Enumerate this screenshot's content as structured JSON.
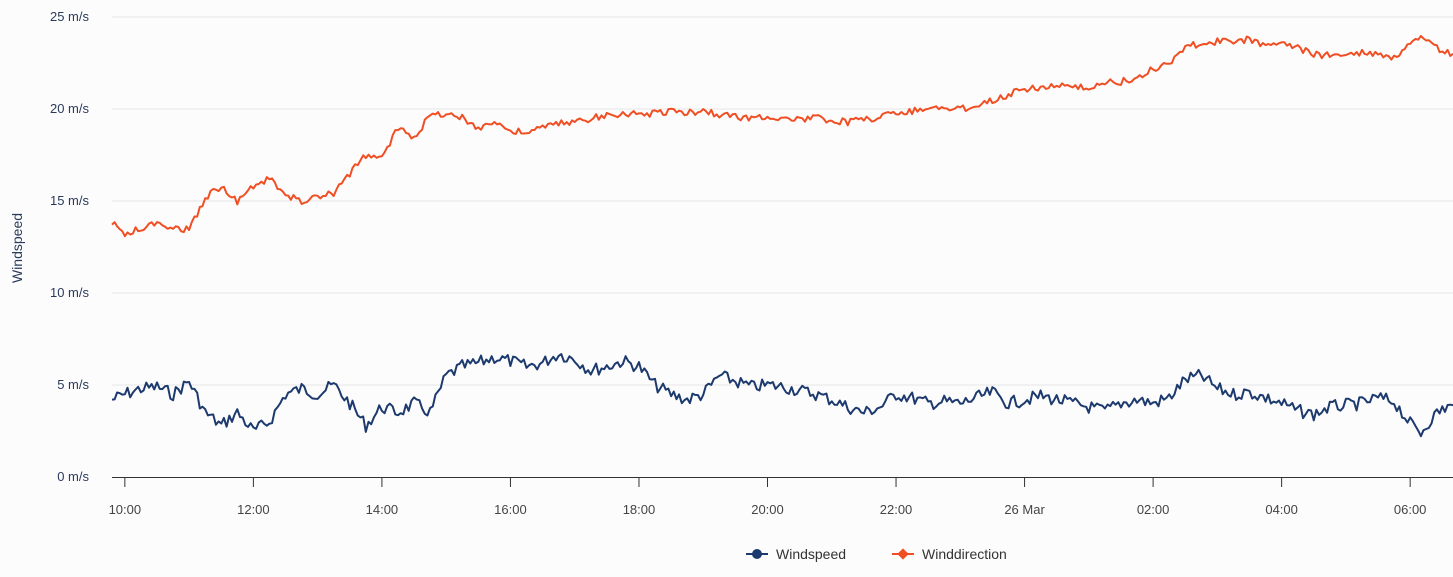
{
  "chart_data": {
    "type": "line",
    "title": "",
    "xlabel": "",
    "ylabel": "Windspeed",
    "y_unit": "m/s",
    "ylim": [
      0,
      25
    ],
    "y_ticks": [
      0,
      5,
      10,
      15,
      20,
      25
    ],
    "y_tick_labels": [
      "0 m/s",
      "5 m/s",
      "10 m/s",
      "15 m/s",
      "20 m/s",
      "25 m/s"
    ],
    "x_range": [
      "2024-03-25 09:48",
      "2024-03-26 06:40"
    ],
    "x_ticks": [
      "2024-03-25 10:00",
      "2024-03-25 12:00",
      "2024-03-25 14:00",
      "2024-03-25 16:00",
      "2024-03-25 18:00",
      "2024-03-25 20:00",
      "2024-03-25 22:00",
      "2024-03-26 00:00",
      "2024-03-26 02:00",
      "2024-03-26 04:00",
      "2024-03-26 06:00"
    ],
    "x_tick_labels": [
      "10:00",
      "12:00",
      "14:00",
      "16:00",
      "18:00",
      "20:00",
      "22:00",
      "26 Mar",
      "02:00",
      "04:00",
      "06:00"
    ],
    "grid": true,
    "legend_position": "bottom-center",
    "series": [
      {
        "name": "Windspeed",
        "color": "#1d3a6e",
        "marker": "circle",
        "points": [
          [
            "2024-03-25 09:48",
            4.2
          ],
          [
            "2024-03-25 10:00",
            4.5
          ],
          [
            "2024-03-25 10:15",
            4.8
          ],
          [
            "2024-03-25 10:30",
            4.9
          ],
          [
            "2024-03-25 10:45",
            4.5
          ],
          [
            "2024-03-25 11:00",
            5.2
          ],
          [
            "2024-03-25 11:15",
            3.5
          ],
          [
            "2024-03-25 11:30",
            2.8
          ],
          [
            "2024-03-25 11:45",
            3.5
          ],
          [
            "2024-03-25 12:00",
            2.5
          ],
          [
            "2024-03-25 12:15",
            3.0
          ],
          [
            "2024-03-25 12:30",
            4.5
          ],
          [
            "2024-03-25 12:45",
            4.8
          ],
          [
            "2024-03-25 13:00",
            4.5
          ],
          [
            "2024-03-25 13:15",
            5.0
          ],
          [
            "2024-03-25 13:30",
            4.0
          ],
          [
            "2024-03-25 13:45",
            2.8
          ],
          [
            "2024-03-25 14:00",
            3.8
          ],
          [
            "2024-03-25 14:15",
            3.5
          ],
          [
            "2024-03-25 14:30",
            4.0
          ],
          [
            "2024-03-25 14:45",
            3.5
          ],
          [
            "2024-03-25 15:00",
            5.5
          ],
          [
            "2024-03-25 15:15",
            6.0
          ],
          [
            "2024-03-25 15:30",
            6.2
          ],
          [
            "2024-03-25 15:45",
            6.5
          ],
          [
            "2024-03-25 16:00",
            6.3
          ],
          [
            "2024-03-25 16:15",
            6.0
          ],
          [
            "2024-03-25 16:30",
            6.2
          ],
          [
            "2024-03-25 16:45",
            6.7
          ],
          [
            "2024-03-25 17:00",
            6.4
          ],
          [
            "2024-03-25 17:15",
            5.8
          ],
          [
            "2024-03-25 17:30",
            6.0
          ],
          [
            "2024-03-25 17:45",
            6.3
          ],
          [
            "2024-03-25 18:00",
            6.0
          ],
          [
            "2024-03-25 18:15",
            5.0
          ],
          [
            "2024-03-25 18:30",
            4.5
          ],
          [
            "2024-03-25 18:45",
            4.2
          ],
          [
            "2024-03-25 19:00",
            4.5
          ],
          [
            "2024-03-25 19:15",
            5.5
          ],
          [
            "2024-03-25 19:30",
            5.2
          ],
          [
            "2024-03-25 19:45",
            4.9
          ],
          [
            "2024-03-25 20:00",
            5.0
          ],
          [
            "2024-03-25 20:15",
            4.9
          ],
          [
            "2024-03-25 20:30",
            4.7
          ],
          [
            "2024-03-25 20:45",
            4.5
          ],
          [
            "2024-03-25 21:00",
            4.2
          ],
          [
            "2024-03-25 21:15",
            3.8
          ],
          [
            "2024-03-25 21:30",
            3.5
          ],
          [
            "2024-03-25 21:45",
            3.8
          ],
          [
            "2024-03-25 22:00",
            4.5
          ],
          [
            "2024-03-25 22:15",
            4.3
          ],
          [
            "2024-03-25 22:30",
            4.0
          ],
          [
            "2024-03-25 22:45",
            4.1
          ],
          [
            "2024-03-25 23:00",
            4.0
          ],
          [
            "2024-03-25 23:15",
            4.3
          ],
          [
            "2024-03-25 23:30",
            4.6
          ],
          [
            "2024-03-25 23:45",
            4.0
          ],
          [
            "2024-03-26 00:00",
            4.2
          ],
          [
            "2024-03-26 00:15",
            4.4
          ],
          [
            "2024-03-26 00:30",
            4.2
          ],
          [
            "2024-03-26 00:45",
            4.0
          ],
          [
            "2024-03-26 01:00",
            3.8
          ],
          [
            "2024-03-26 01:15",
            3.6
          ],
          [
            "2024-03-26 01:30",
            4.0
          ],
          [
            "2024-03-26 01:45",
            4.2
          ],
          [
            "2024-03-26 02:00",
            4.0
          ],
          [
            "2024-03-26 02:15",
            4.3
          ],
          [
            "2024-03-26 02:30",
            5.3
          ],
          [
            "2024-03-26 02:45",
            5.5
          ],
          [
            "2024-03-26 03:00",
            4.8
          ],
          [
            "2024-03-26 03:15",
            4.5
          ],
          [
            "2024-03-26 03:30",
            4.6
          ],
          [
            "2024-03-26 03:45",
            4.3
          ],
          [
            "2024-03-26 04:00",
            4.0
          ],
          [
            "2024-03-26 04:15",
            3.6
          ],
          [
            "2024-03-26 04:30",
            3.4
          ],
          [
            "2024-03-26 04:45",
            3.8
          ],
          [
            "2024-03-26 05:00",
            3.9
          ],
          [
            "2024-03-26 05:15",
            4.0
          ],
          [
            "2024-03-26 05:30",
            4.3
          ],
          [
            "2024-03-26 05:45",
            4.1
          ],
          [
            "2024-03-26 06:00",
            2.9
          ],
          [
            "2024-03-26 06:10",
            2.4
          ],
          [
            "2024-03-26 06:20",
            3.2
          ],
          [
            "2024-03-26 06:30",
            3.7
          ],
          [
            "2024-03-26 06:40",
            3.9
          ]
        ]
      },
      {
        "name": "Winddirection",
        "color": "#f04e23",
        "marker": "diamond",
        "points": [
          [
            "2024-03-25 09:48",
            13.8
          ],
          [
            "2024-03-25 10:00",
            13.2
          ],
          [
            "2024-03-25 10:15",
            13.5
          ],
          [
            "2024-03-25 10:30",
            13.8
          ],
          [
            "2024-03-25 10:45",
            13.6
          ],
          [
            "2024-03-25 11:00",
            13.4
          ],
          [
            "2024-03-25 11:15",
            15.2
          ],
          [
            "2024-03-25 11:30",
            15.8
          ],
          [
            "2024-03-25 11:45",
            15.0
          ],
          [
            "2024-03-25 12:00",
            15.8
          ],
          [
            "2024-03-25 12:15",
            16.2
          ],
          [
            "2024-03-25 12:30",
            15.3
          ],
          [
            "2024-03-25 12:45",
            15.0
          ],
          [
            "2024-03-25 13:00",
            15.2
          ],
          [
            "2024-03-25 13:15",
            15.4
          ],
          [
            "2024-03-25 13:30",
            16.5
          ],
          [
            "2024-03-25 13:45",
            17.5
          ],
          [
            "2024-03-25 14:00",
            17.3
          ],
          [
            "2024-03-25 14:15",
            19.0
          ],
          [
            "2024-03-25 14:30",
            18.5
          ],
          [
            "2024-03-25 14:45",
            19.6
          ],
          [
            "2024-03-25 15:00",
            19.8
          ],
          [
            "2024-03-25 15:15",
            19.5
          ],
          [
            "2024-03-25 15:30",
            19.0
          ],
          [
            "2024-03-25 15:45",
            19.3
          ],
          [
            "2024-03-25 16:00",
            18.8
          ],
          [
            "2024-03-25 16:15",
            18.7
          ],
          [
            "2024-03-25 16:30",
            19.0
          ],
          [
            "2024-03-25 16:45",
            19.2
          ],
          [
            "2024-03-25 17:00",
            19.3
          ],
          [
            "2024-03-25 17:15",
            19.5
          ],
          [
            "2024-03-25 17:30",
            19.6
          ],
          [
            "2024-03-25 17:45",
            19.8
          ],
          [
            "2024-03-25 18:00",
            19.7
          ],
          [
            "2024-03-25 18:15",
            19.8
          ],
          [
            "2024-03-25 18:30",
            19.9
          ],
          [
            "2024-03-25 18:45",
            19.8
          ],
          [
            "2024-03-25 19:00",
            19.9
          ],
          [
            "2024-03-25 19:15",
            19.7
          ],
          [
            "2024-03-25 19:30",
            19.6
          ],
          [
            "2024-03-25 19:45",
            19.5
          ],
          [
            "2024-03-25 20:00",
            19.6
          ],
          [
            "2024-03-25 20:15",
            19.5
          ],
          [
            "2024-03-25 20:30",
            19.4
          ],
          [
            "2024-03-25 20:45",
            19.5
          ],
          [
            "2024-03-25 21:00",
            19.4
          ],
          [
            "2024-03-25 21:15",
            19.3
          ],
          [
            "2024-03-25 21:30",
            19.4
          ],
          [
            "2024-03-25 21:45",
            19.6
          ],
          [
            "2024-03-25 22:00",
            19.8
          ],
          [
            "2024-03-25 22:15",
            19.9
          ],
          [
            "2024-03-25 22:30",
            20.1
          ],
          [
            "2024-03-25 22:45",
            20.0
          ],
          [
            "2024-03-25 23:00",
            20.0
          ],
          [
            "2024-03-25 23:15",
            20.2
          ],
          [
            "2024-03-25 23:30",
            20.5
          ],
          [
            "2024-03-25 23:45",
            20.8
          ],
          [
            "2024-03-26 00:00",
            21.1
          ],
          [
            "2024-03-26 00:15",
            21.2
          ],
          [
            "2024-03-26 00:30",
            21.3
          ],
          [
            "2024-03-26 00:45",
            21.1
          ],
          [
            "2024-03-26 01:00",
            21.2
          ],
          [
            "2024-03-26 01:15",
            21.4
          ],
          [
            "2024-03-26 01:30",
            21.5
          ],
          [
            "2024-03-26 01:45",
            21.6
          ],
          [
            "2024-03-26 02:00",
            22.2
          ],
          [
            "2024-03-26 02:15",
            22.5
          ],
          [
            "2024-03-26 02:30",
            23.4
          ],
          [
            "2024-03-26 02:45",
            23.5
          ],
          [
            "2024-03-26 03:00",
            23.7
          ],
          [
            "2024-03-26 03:15",
            23.6
          ],
          [
            "2024-03-26 03:30",
            23.8
          ],
          [
            "2024-03-26 03:45",
            23.5
          ],
          [
            "2024-03-26 04:00",
            23.7
          ],
          [
            "2024-03-26 04:15",
            23.3
          ],
          [
            "2024-03-26 04:30",
            23.0
          ],
          [
            "2024-03-26 04:45",
            22.9
          ],
          [
            "2024-03-26 05:00",
            23.0
          ],
          [
            "2024-03-26 05:15",
            23.1
          ],
          [
            "2024-03-26 05:30",
            23.0
          ],
          [
            "2024-03-26 05:45",
            22.8
          ],
          [
            "2024-03-26 06:00",
            23.5
          ],
          [
            "2024-03-26 06:10",
            23.9
          ],
          [
            "2024-03-26 06:20",
            23.5
          ],
          [
            "2024-03-26 06:30",
            23.2
          ],
          [
            "2024-03-26 06:40",
            23.0
          ]
        ]
      }
    ]
  },
  "legend": {
    "items": [
      {
        "label": "Windspeed"
      },
      {
        "label": "Winddirection"
      }
    ]
  }
}
